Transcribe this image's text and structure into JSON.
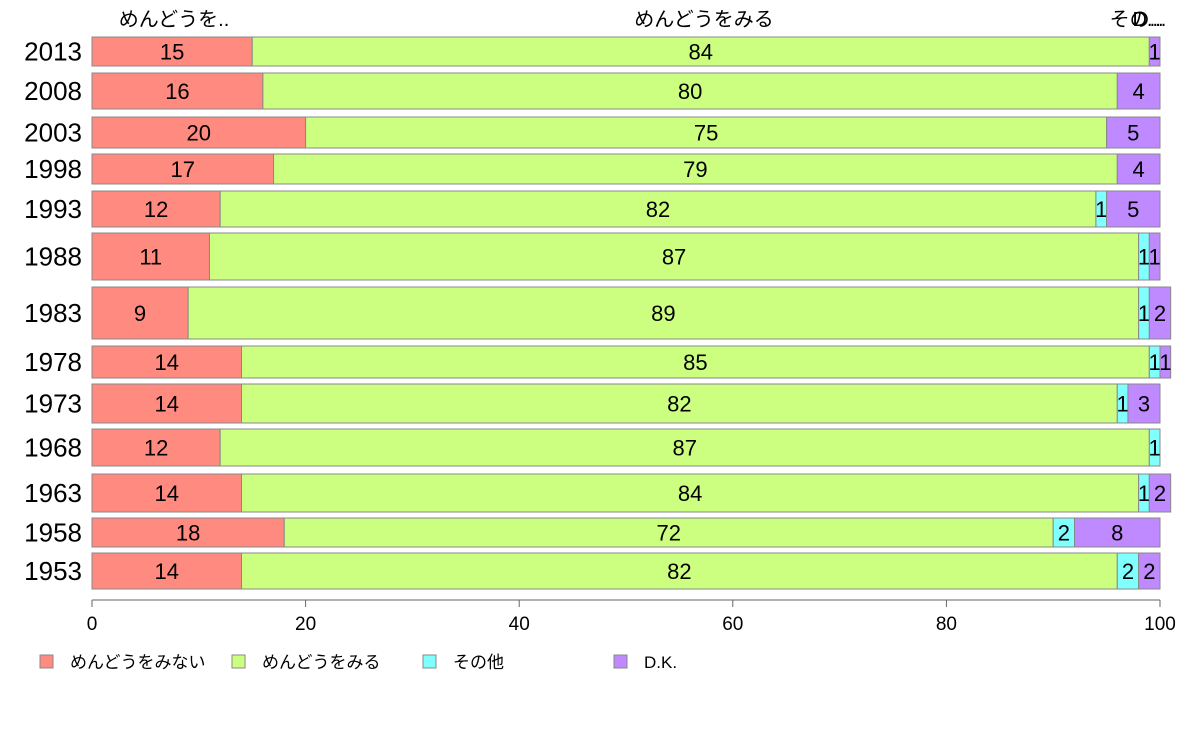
{
  "chart_data": {
    "type": "bar",
    "orientation": "horizontal",
    "stacked": true,
    "categories": [
      "2013",
      "2008",
      "2003",
      "1998",
      "1993",
      "1988",
      "1983",
      "1978",
      "1973",
      "1968",
      "1963",
      "1958",
      "1953"
    ],
    "series": [
      {
        "name": "めんどうをみない",
        "color": "#ff8a80",
        "values": [
          15,
          16,
          20,
          17,
          12,
          11,
          9,
          14,
          14,
          12,
          14,
          18,
          14
        ]
      },
      {
        "name": "めんどうをみる",
        "color": "#ccff80",
        "values": [
          84,
          80,
          75,
          79,
          82,
          87,
          89,
          85,
          82,
          87,
          84,
          72,
          82
        ]
      },
      {
        "name": "その他",
        "color": "#80ffff",
        "values": [
          0,
          0,
          0,
          0,
          1,
          1,
          1,
          1,
          1,
          1,
          1,
          2,
          2
        ]
      },
      {
        "name": "D.K.",
        "color": "#bf8aff",
        "values": [
          1,
          4,
          5,
          4,
          5,
          1,
          2,
          1,
          3,
          0,
          2,
          8,
          2
        ]
      }
    ],
    "segment_labels": [
      [
        "15",
        "84",
        "",
        "1"
      ],
      [
        "16",
        "80",
        "",
        "4"
      ],
      [
        "20",
        "75",
        "",
        "5"
      ],
      [
        "17",
        "79",
        "",
        "4"
      ],
      [
        "12",
        "82",
        "1",
        "5"
      ],
      [
        "11",
        "87",
        "1",
        "1"
      ],
      [
        "9",
        "89",
        "1",
        "2"
      ],
      [
        "14",
        "85",
        "1",
        "1"
      ],
      [
        "14",
        "82",
        "1",
        "3"
      ],
      [
        "12",
        "87",
        "1",
        ""
      ],
      [
        "14",
        "84",
        "1",
        "2"
      ],
      [
        "18",
        "72",
        "2",
        "8"
      ],
      [
        "14",
        "82",
        "2",
        "2"
      ]
    ],
    "top_labels": [
      "めんどうを..",
      "めんどうをみる",
      "その...",
      "D..."
    ],
    "x_ticks": [
      "0",
      "20",
      "40",
      "60",
      "80",
      "100"
    ],
    "xlim": [
      0,
      100
    ],
    "legend": [
      "めんどうをみない",
      "めんどうをみる",
      "その他",
      "D.K."
    ],
    "legend_position": "bottom-left",
    "grid": false
  }
}
